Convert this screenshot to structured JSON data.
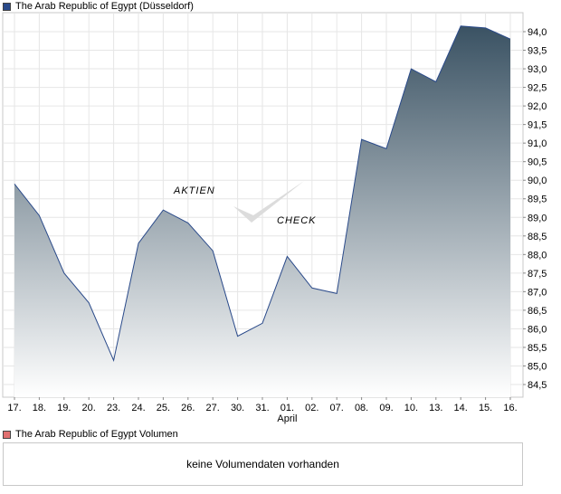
{
  "price_chart": {
    "legend_label": "The Arab Republic of Egypt (Düsseldorf)",
    "legend_color": "#2a4a8a",
    "line_color": "#2a4a8a",
    "fill_top_color": "#3a5263",
    "fill_bottom_color": "#ffffff",
    "watermark": [
      "AKTIEN",
      "CHECK"
    ]
  },
  "chart_data": {
    "type": "area",
    "title": "",
    "xlabel": "",
    "ylabel": "",
    "categories": [
      "17.",
      "18.",
      "19.",
      "20.",
      "23.",
      "24.",
      "25.",
      "26.",
      "27.",
      "30.",
      "31.",
      "01.",
      "02.",
      "07.",
      "08.",
      "09.",
      "10.",
      "13.",
      "14.",
      "15.",
      "16."
    ],
    "month_labels": [
      {
        "index": 11,
        "label": "April"
      }
    ],
    "series": [
      {
        "values": [
          89.9,
          89.05,
          87.5,
          86.7,
          85.15,
          88.3,
          89.2,
          88.85,
          88.1,
          85.8,
          86.15,
          87.95,
          87.1,
          86.95,
          91.1,
          90.85,
          93.0,
          92.65,
          94.15,
          94.1,
          93.8
        ]
      }
    ],
    "ylim": [
      84.3,
      94.5
    ],
    "yticks": [
      84.5,
      85.0,
      85.5,
      86.0,
      86.5,
      87.0,
      87.5,
      88.0,
      88.5,
      89.0,
      89.5,
      90.0,
      90.5,
      91.0,
      91.5,
      92.0,
      92.5,
      93.0,
      93.5,
      94.0
    ],
    "ytick_labels": [
      "84,5",
      "85,0",
      "85,5",
      "86,0",
      "86,5",
      "87,0",
      "87,5",
      "88,0",
      "88,5",
      "89,0",
      "89,5",
      "90,0",
      "90,5",
      "91,0",
      "91,5",
      "92,0",
      "92,5",
      "93,0",
      "93,5",
      "94,0"
    ],
    "grid": true,
    "y_axis_side": "right"
  },
  "volume_chart": {
    "legend_label": "The Arab Republic of Egypt Volumen",
    "legend_color": "#e07070",
    "message": "keine Volumendaten vorhanden"
  }
}
